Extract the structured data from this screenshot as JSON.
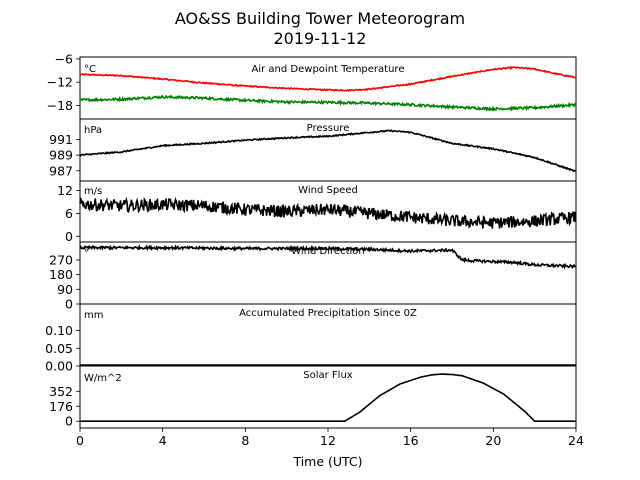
{
  "title": "AO&SS Building Tower Meteorogram",
  "subtitle": "2019-11-12",
  "xlabel": "Time (UTC)",
  "xlim": [
    0,
    24
  ],
  "xticks": [
    0,
    4,
    8,
    12,
    16,
    20,
    24
  ],
  "chart_data": [
    {
      "type": "line",
      "title": "Air and Dewpoint Temperature",
      "unit": "°C",
      "ylim": [
        -21.5,
        -5.5
      ],
      "yticks": [
        -18,
        -12,
        -6
      ],
      "ytick_labels": [
        "−18",
        "−12",
        "−6"
      ],
      "series": [
        {
          "color": "#ff0000",
          "noise": 0.15,
          "x": [
            0,
            2,
            4,
            6,
            8,
            10,
            12,
            13,
            14,
            16,
            18,
            19,
            20,
            21,
            22,
            23,
            24
          ],
          "y": [
            -10,
            -10.3,
            -11.2,
            -12.2,
            -13.0,
            -13.6,
            -14.0,
            -14.1,
            -13.8,
            -12.5,
            -10.5,
            -9.6,
            -8.7,
            -8.2,
            -8.6,
            -9.8,
            -10.8
          ]
        },
        {
          "color": "#008000",
          "noise": 0.3,
          "x": [
            0,
            2,
            4,
            6,
            8,
            10,
            12,
            14,
            16,
            18,
            20,
            22,
            24
          ],
          "y": [
            -16.6,
            -16.4,
            -15.8,
            -16.1,
            -16.7,
            -17.1,
            -17.2,
            -17.4,
            -17.8,
            -18.4,
            -18.9,
            -18.6,
            -17.8
          ]
        }
      ]
    },
    {
      "type": "line",
      "title": "Pressure",
      "unit": "hPa",
      "ylim": [
        985.7,
        993.6
      ],
      "yticks": [
        987,
        989,
        991
      ],
      "ytick_labels": [
        "987",
        "989",
        "991"
      ],
      "series": [
        {
          "color": "#000000",
          "noise": 0.08,
          "x": [
            0,
            2,
            4,
            6,
            8,
            10,
            12,
            14,
            15,
            16,
            17,
            18,
            20,
            22,
            24
          ],
          "y": [
            989.0,
            989.4,
            990.2,
            990.5,
            990.9,
            991.2,
            991.4,
            991.9,
            992.1,
            991.9,
            991.2,
            990.5,
            989.8,
            988.7,
            986.9
          ]
        }
      ]
    },
    {
      "type": "line",
      "title": "Wind Speed",
      "unit": "m/s",
      "ylim": [
        -1.5,
        14.5
      ],
      "yticks": [
        0,
        6,
        12
      ],
      "ytick_labels": [
        "0",
        "6",
        "12"
      ],
      "series": [
        {
          "color": "#000000",
          "noise": 1.6,
          "x": [
            0,
            2,
            4,
            6,
            8,
            10,
            12,
            14,
            16,
            18,
            20,
            22,
            24
          ],
          "y": [
            8.5,
            8.0,
            8.3,
            8.0,
            7.0,
            6.5,
            7.0,
            6.0,
            5.0,
            4.0,
            3.5,
            4.0,
            5.0
          ]
        }
      ]
    },
    {
      "type": "line",
      "title": "Wind Direction",
      "unit": "°",
      "ylim": [
        0,
        380
      ],
      "yticks": [
        0,
        90,
        180,
        270
      ],
      "ytick_labels": [
        "0",
        "90",
        "180",
        "270"
      ],
      "series": [
        {
          "color": "#000000",
          "noise": 8,
          "x": [
            0,
            4,
            8,
            12,
            14,
            15,
            16,
            18,
            18.5,
            19,
            20,
            21,
            22,
            24
          ],
          "y": [
            345,
            345,
            340,
            340,
            335,
            330,
            325,
            330,
            270,
            265,
            260,
            255,
            240,
            230
          ]
        }
      ]
    },
    {
      "type": "line",
      "title": "Accumulated Precipitation Since 0Z",
      "unit": "mm",
      "ylim": [
        0,
        0.175
      ],
      "yticks": [
        0.0,
        0.05,
        0.1
      ],
      "ytick_labels": [
        "0.00",
        "0.05",
        "0.10"
      ],
      "series": [
        {
          "color": "#000000",
          "noise": 0,
          "x": [
            0,
            24
          ],
          "y": [
            0,
            0
          ]
        }
      ]
    },
    {
      "type": "line",
      "title": "Solar Flux",
      "unit": "W/m^2",
      "ylim": [
        -80,
        650
      ],
      "yticks": [
        0,
        176,
        352
      ],
      "ytick_labels": [
        "0",
        "176",
        "352"
      ],
      "series": [
        {
          "color": "#000000",
          "noise": 0,
          "x": [
            0,
            12.8,
            13.5,
            14.5,
            15.5,
            16.5,
            17.0,
            17.5,
            18.0,
            18.5,
            19.5,
            20.5,
            21.5,
            22.0,
            24
          ],
          "y": [
            0,
            0,
            100,
            300,
            440,
            520,
            545,
            555,
            550,
            535,
            450,
            320,
            120,
            0,
            0
          ]
        }
      ]
    }
  ]
}
